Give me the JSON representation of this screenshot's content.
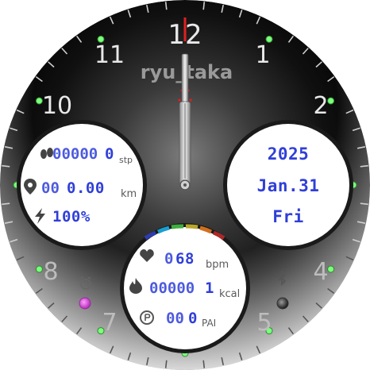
{
  "brand": "ryu_taka",
  "hour_numerals": {
    "n12": "12",
    "n1": "1",
    "n2": "2",
    "n4": "4",
    "n5": "5",
    "n7": "7",
    "n8": "8",
    "n10": "10",
    "n11": "11"
  },
  "steps": {
    "ghost": "00000",
    "value": "0",
    "unit": "stp"
  },
  "distance": {
    "ghost": "00",
    "value": "0.00",
    "unit": "km"
  },
  "battery": {
    "value": "100%"
  },
  "date": {
    "year": "2025",
    "month_day": "Jan.31",
    "weekday": "Fri"
  },
  "heart_rate": {
    "ghost": "0",
    "value": "68",
    "unit": "bpm"
  },
  "calories": {
    "ghost": "00000",
    "value": "1",
    "unit": "kcal"
  },
  "pai": {
    "ghost": "00",
    "value": "0",
    "unit": "PAI"
  },
  "colors": {
    "accent_red": "#e02020",
    "lcd_blue": "#2f3fd8",
    "tick_green": "#7dff7d",
    "alarm_magenta": "#d44bd6"
  },
  "icons": [
    "footprints-icon",
    "location-pin-icon",
    "lightning-icon",
    "heart-icon",
    "flame-icon",
    "pai-icon",
    "alarm-icon",
    "bluetooth-icon"
  ]
}
